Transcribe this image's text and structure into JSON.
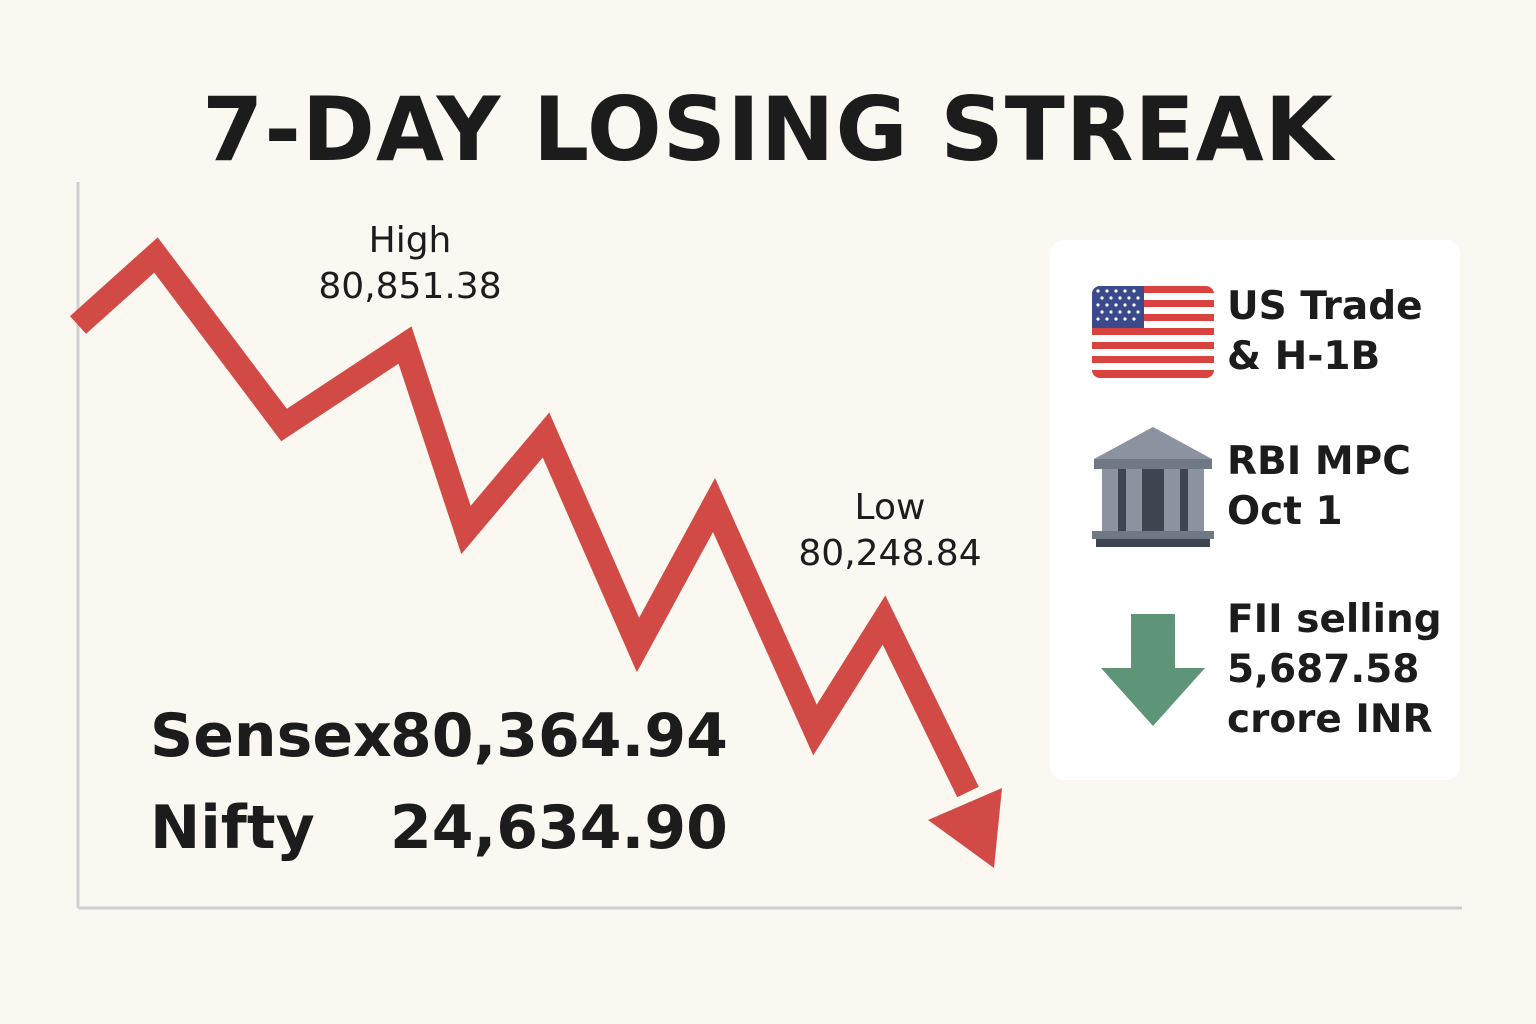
{
  "title": "7-DAY LOSING STREAK",
  "chart_data": {
    "type": "line",
    "color": "#d24a45",
    "annotations": [
      {
        "label": "High",
        "value": "80,851.38"
      },
      {
        "label": "Low",
        "value": "80,248.84"
      }
    ]
  },
  "indices": [
    {
      "name": "Sensex",
      "value": "80,364.94"
    },
    {
      "name": "Nifty",
      "value": "24,634.90"
    }
  ],
  "panel": {
    "us": {
      "icon": "us-flag-icon",
      "line1": "US Trade",
      "line2": "& H-1B"
    },
    "rbi": {
      "icon": "bank-building-icon",
      "line1": "RBI MPC",
      "line2": "Oct 1"
    },
    "fii": {
      "icon": "down-arrow-icon",
      "line1": "FII selling",
      "line2": "5,687.58",
      "line3": "crore INR"
    }
  },
  "colors": {
    "line": "#d24a45",
    "flag_red": "#d9433f",
    "flag_blue": "#3a4a8c",
    "bank": "#8a939f",
    "bank_dark": "#3d4550",
    "arrow_green": "#5e9477",
    "background": "#fbf8f2"
  }
}
